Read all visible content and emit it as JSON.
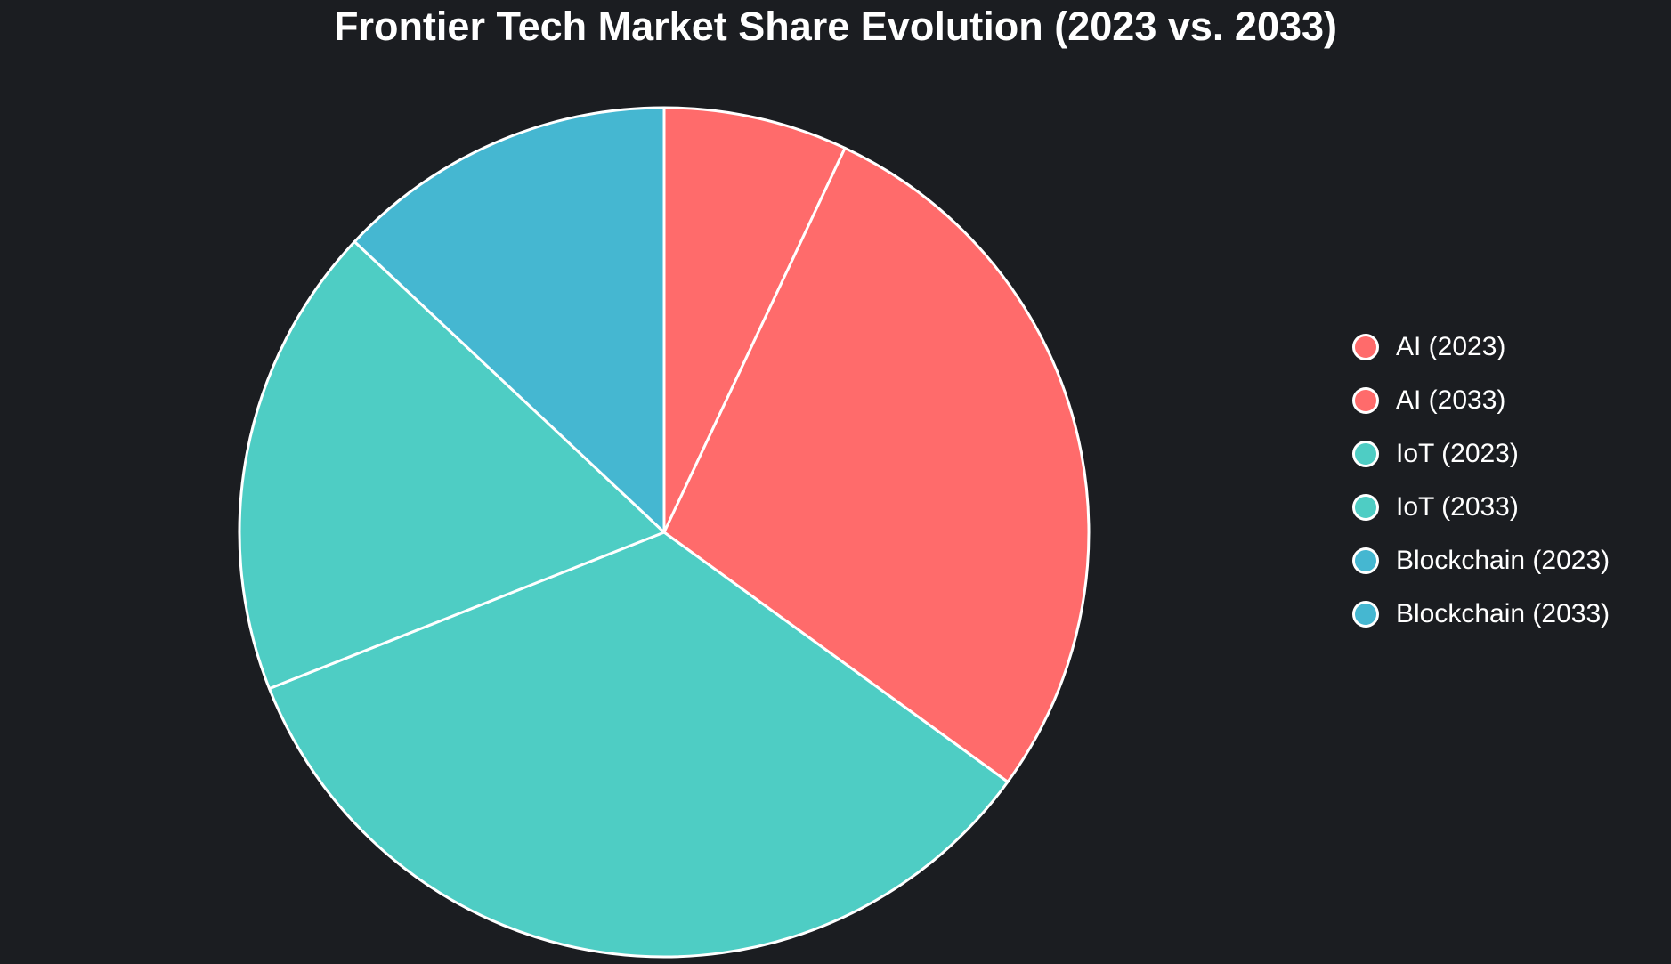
{
  "colors": {
    "background": "#1B1D21",
    "slice_border": "#FFFFFF",
    "text": "#FFFFFF",
    "ai": "#FF6B6B",
    "iot": "#4ECDC4",
    "blockchain": "#45B7D1"
  },
  "chart_data": {
    "type": "pie",
    "title": "Frontier Tech Market Share Evolution (2023 vs. 2033)",
    "legend_position": "right",
    "start_angle": "top",
    "direction": "clockwise",
    "unit": "percent",
    "slices": [
      {
        "label": "AI (2023)",
        "value": 7,
        "color": "#FF6B6B"
      },
      {
        "label": "AI (2033)",
        "value": 28,
        "color": "#FF6B6B"
      },
      {
        "label": "IoT (2023)",
        "value": 34,
        "color": "#4ECDC4"
      },
      {
        "label": "IoT (2033)",
        "value": 18,
        "color": "#4ECDC4"
      },
      {
        "label": "Blockchain (2023)",
        "value": 13,
        "color": "#45B7D1"
      },
      {
        "label": "Blockchain (2033)",
        "value": 0,
        "color": "#45B7D1"
      }
    ]
  }
}
